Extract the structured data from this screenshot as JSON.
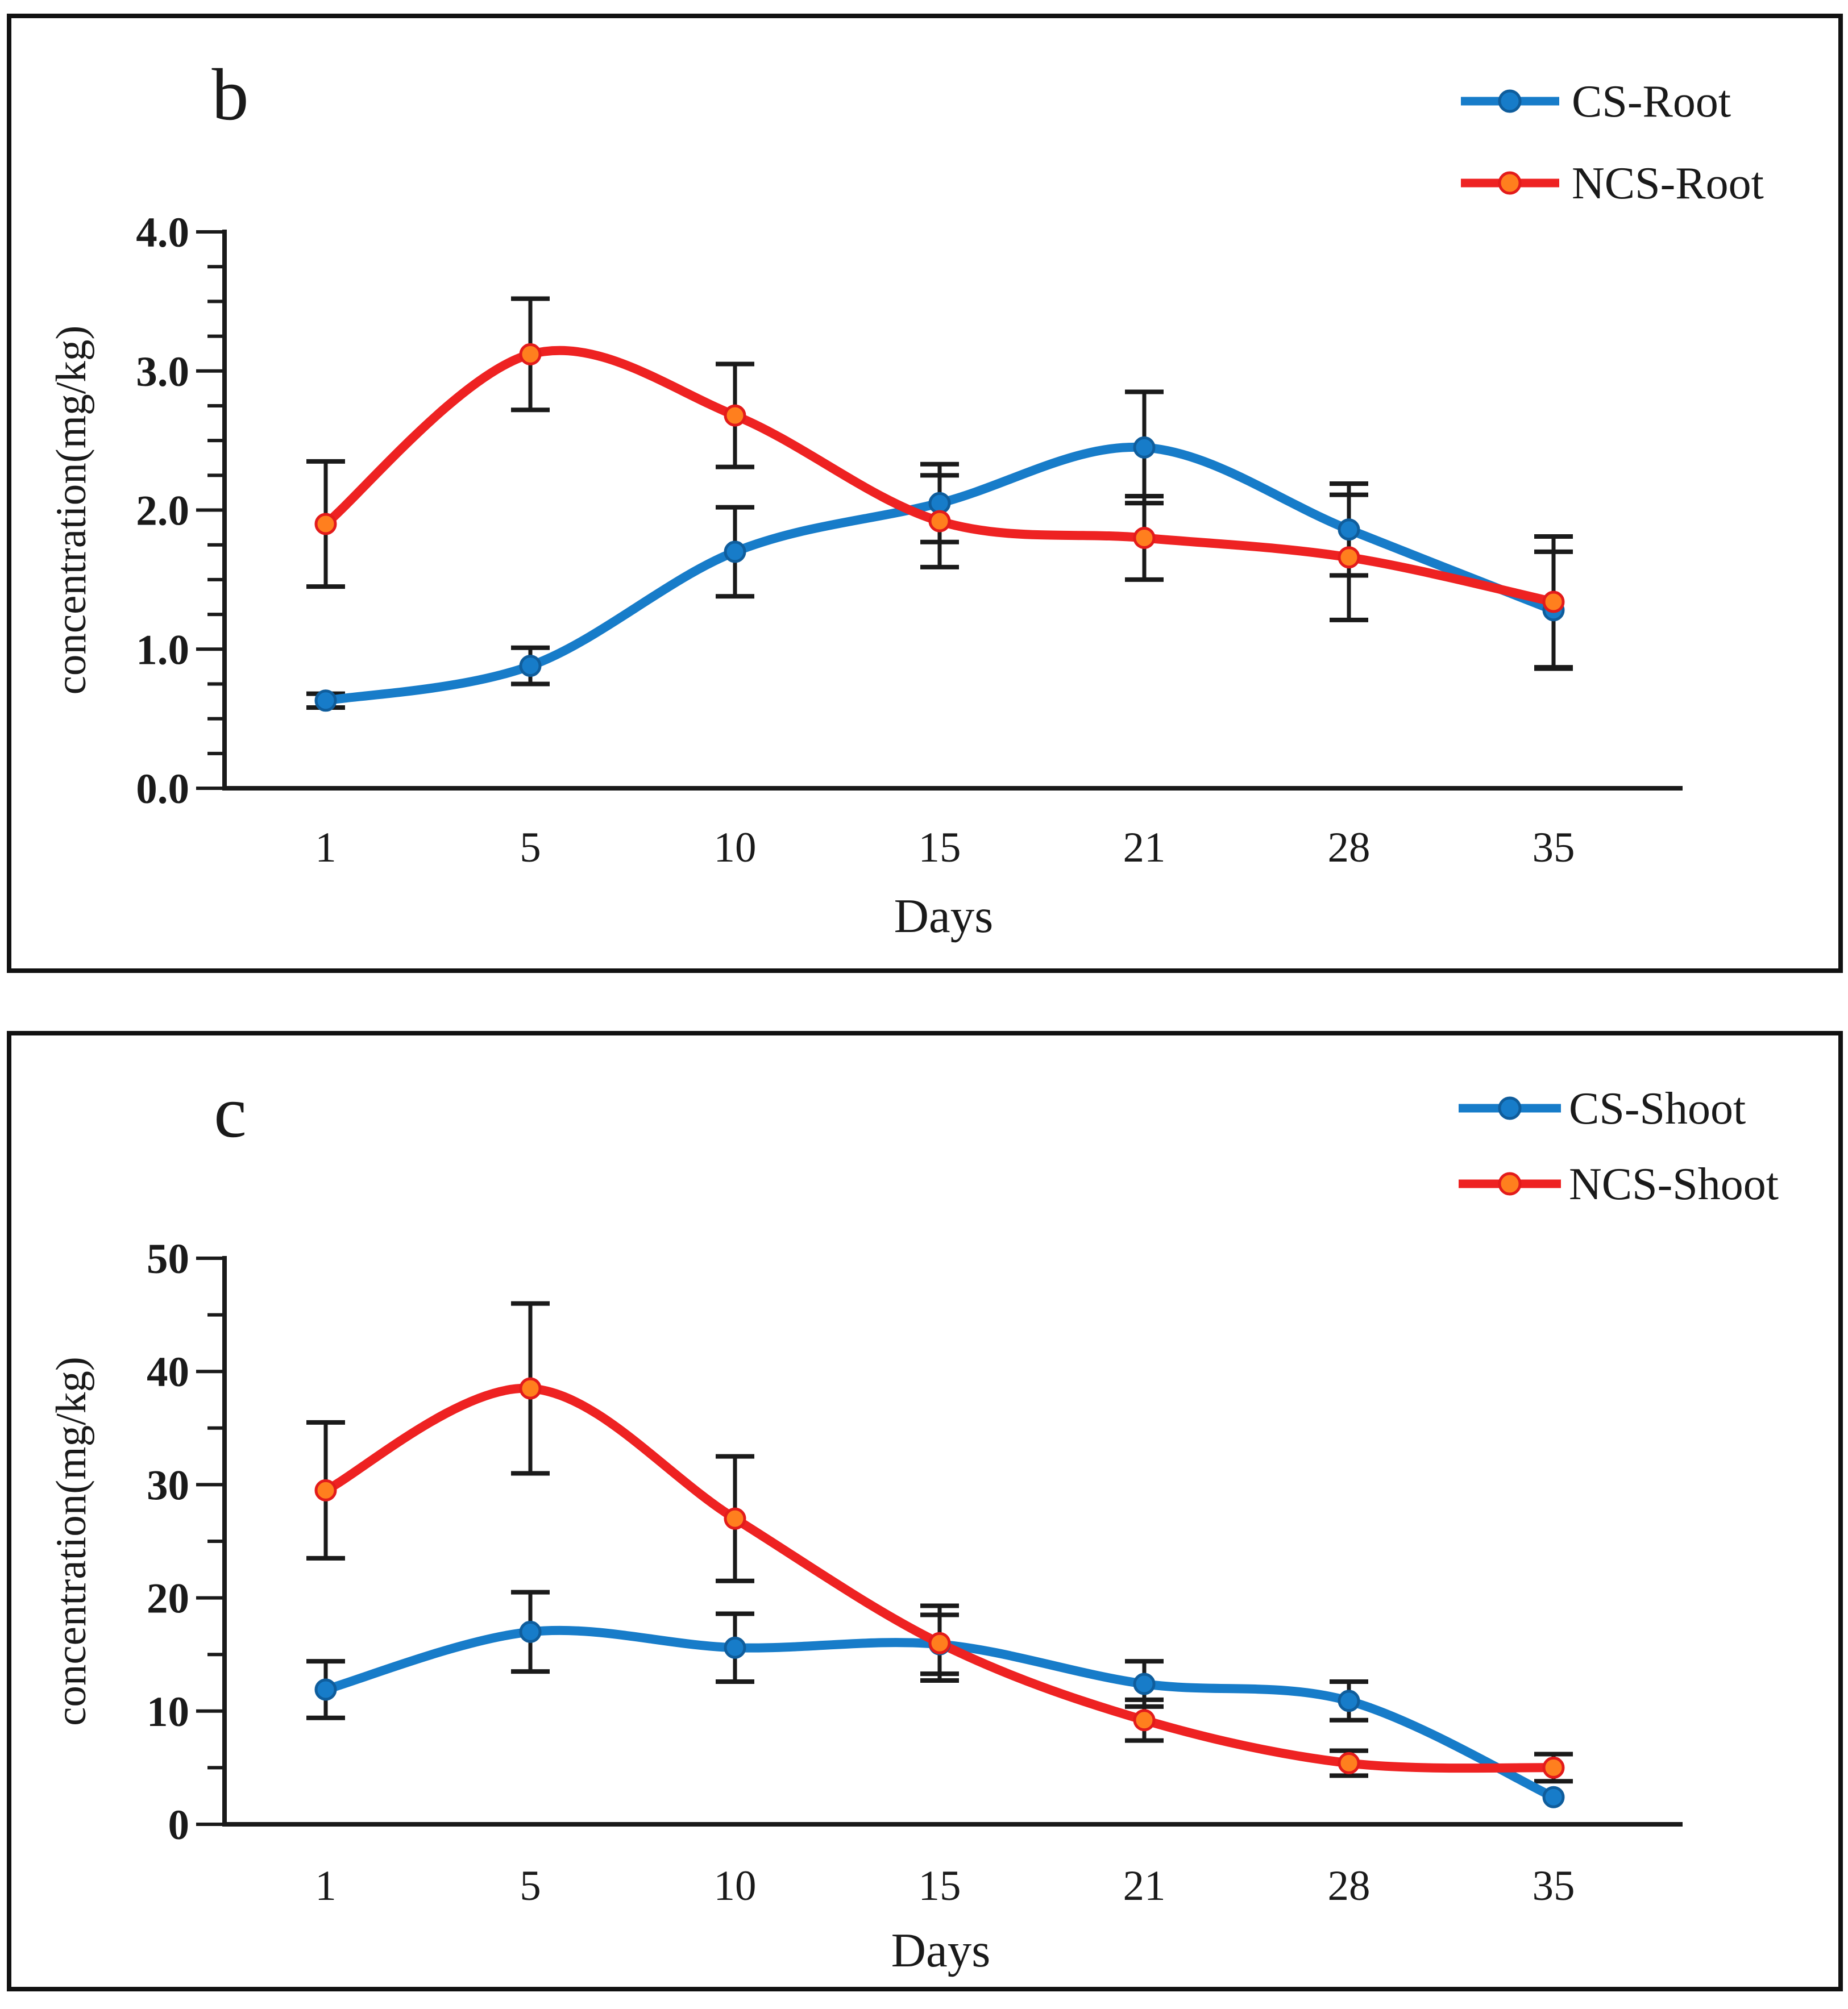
{
  "figure": {
    "background": "#ffffff",
    "border_color": "#111111",
    "axis_color": "#1a1a1a",
    "error_bar_color": "#1a1a1a"
  },
  "chart_data": [
    {
      "type": "line",
      "panel_label": "b",
      "x_categories": [
        "1",
        "5",
        "10",
        "15",
        "21",
        "28",
        "35"
      ],
      "xlabel": "Days",
      "ylabel": "concentration(mg/kg)",
      "ylim": [
        0,
        4
      ],
      "ytick_labels": [
        "0.0",
        "1.0",
        "2.0",
        "3.0",
        "4.0"
      ],
      "ytick_major_step": 1,
      "ytick_minor_step": 0.25,
      "grid": false,
      "legend_position": "top-right",
      "series": [
        {
          "name": "CS-Root",
          "line_color": "#177cc9",
          "marker_fill": "#177cc9",
          "marker_stroke": "#0f5d9c",
          "values": [
            0.63,
            0.88,
            1.7,
            2.05,
            2.45,
            1.86,
            1.28
          ],
          "errors": [
            0.05,
            0.13,
            0.32,
            0.28,
            0.4,
            0.33,
            0.42
          ]
        },
        {
          "name": "NCS-Root",
          "line_color": "#ee2222",
          "marker_fill": "#ff7f1e",
          "marker_stroke": "#e31b1b",
          "values": [
            1.9,
            3.12,
            2.68,
            1.92,
            1.8,
            1.66,
            1.34
          ],
          "errors": [
            0.45,
            0.4,
            0.37,
            0.33,
            0.3,
            0.45,
            0.47
          ]
        }
      ]
    },
    {
      "type": "line",
      "panel_label": "c",
      "x_categories": [
        "1",
        "5",
        "10",
        "15",
        "21",
        "28",
        "35"
      ],
      "xlabel": "Days",
      "ylabel": "concentration(mg/kg)",
      "ylim": [
        0,
        50
      ],
      "ytick_labels": [
        "0",
        "10",
        "20",
        "30",
        "40",
        "50"
      ],
      "ytick_major_step": 10,
      "ytick_minor_step": 5,
      "grid": false,
      "legend_position": "top-right",
      "series": [
        {
          "name": "CS-Shoot",
          "line_color": "#177cc9",
          "marker_fill": "#177cc9",
          "marker_stroke": "#0f5d9c",
          "values": [
            11.9,
            17.0,
            15.6,
            15.9,
            12.4,
            10.9,
            2.4
          ],
          "errors": [
            2.5,
            3.5,
            3.0,
            2.6,
            2.0,
            1.7,
            0
          ]
        },
        {
          "name": "NCS-Shoot",
          "line_color": "#ee2222",
          "marker_fill": "#ff7f1e",
          "marker_stroke": "#e31b1b",
          "values": [
            29.5,
            38.5,
            27.0,
            16.0,
            9.2,
            5.4,
            5.0
          ],
          "errors": [
            6.0,
            7.5,
            5.5,
            3.3,
            1.8,
            1.1,
            1.2
          ]
        }
      ]
    }
  ]
}
